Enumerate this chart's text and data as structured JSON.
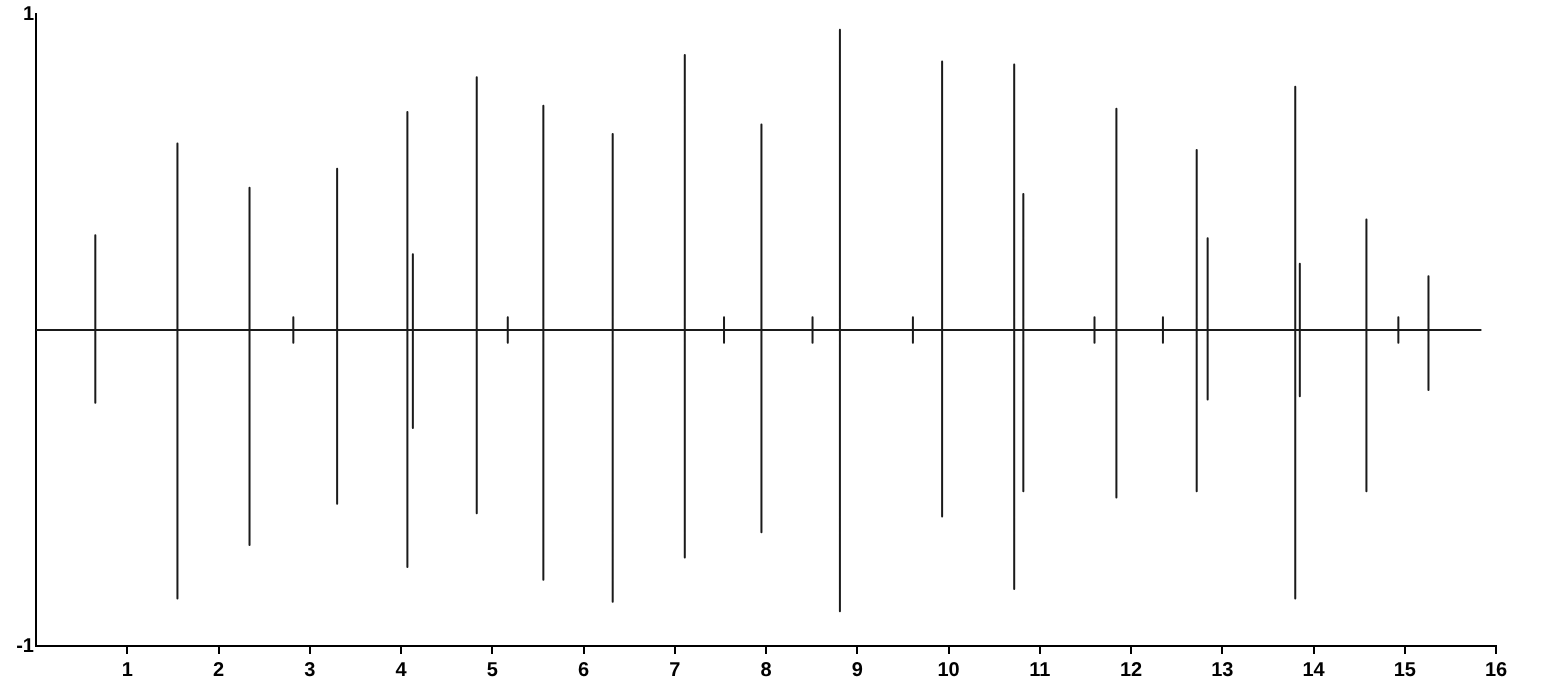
{
  "chart_data": {
    "type": "line",
    "x": [
      0,
      0.65,
      0.65,
      0.65,
      0.65,
      1.55,
      1.55,
      1.55,
      1.55,
      2.34,
      2.34,
      2.34,
      2.34,
      2.82,
      2.82,
      2.82,
      2.82,
      3.3,
      3.3,
      3.3,
      3.3,
      4.07,
      4.07,
      4.07,
      4.07,
      4.13,
      4.13,
      4.13,
      4.13,
      4.83,
      4.83,
      4.83,
      4.83,
      5.17,
      5.17,
      5.17,
      5.17,
      5.56,
      5.56,
      5.56,
      5.56,
      6.32,
      6.32,
      6.32,
      6.32,
      7.11,
      7.11,
      7.11,
      7.11,
      7.54,
      7.54,
      7.54,
      7.54,
      7.95,
      7.95,
      7.95,
      7.95,
      8.51,
      8.51,
      8.51,
      8.51,
      8.81,
      8.81,
      8.81,
      8.81,
      9.61,
      9.61,
      9.61,
      9.61,
      9.93,
      9.93,
      9.93,
      9.93,
      10.72,
      10.72,
      10.72,
      10.72,
      10.82,
      10.82,
      10.82,
      10.82,
      11.6,
      11.6,
      11.6,
      11.6,
      11.84,
      11.84,
      11.84,
      11.84,
      12.35,
      12.35,
      12.35,
      12.35,
      12.72,
      12.72,
      12.72,
      12.72,
      12.84,
      12.84,
      12.84,
      12.84,
      13.8,
      13.8,
      13.8,
      13.8,
      13.85,
      13.85,
      13.85,
      13.85,
      14.58,
      14.58,
      14.58,
      14.58,
      14.93,
      14.93,
      14.93,
      14.93,
      15.26,
      15.26,
      15.26,
      15.26,
      15.84
    ],
    "values": [
      0,
      0,
      0.3,
      -0.23,
      0,
      0,
      0.59,
      -0.85,
      0,
      0,
      0.45,
      -0.68,
      0,
      0,
      0.04,
      -0.04,
      0,
      0,
      0.51,
      -0.55,
      0,
      0,
      0.69,
      -0.75,
      0,
      0,
      0.24,
      -0.31,
      0,
      0,
      0.8,
      -0.58,
      0,
      0,
      0.04,
      -0.04,
      0,
      0,
      0.71,
      -0.79,
      0,
      0,
      0.62,
      -0.86,
      0,
      0,
      0.87,
      -0.72,
      0,
      0,
      0.04,
      -0.04,
      0,
      0,
      0.65,
      -0.64,
      0,
      0,
      0.04,
      -0.04,
      0,
      0,
      0.95,
      -0.89,
      0,
      0,
      0.04,
      -0.04,
      0,
      0,
      0.85,
      -0.59,
      0,
      0,
      0.84,
      -0.82,
      0,
      0,
      0.43,
      -0.51,
      0,
      0,
      0.04,
      -0.04,
      0,
      0,
      0.7,
      -0.53,
      0,
      0,
      0.04,
      -0.04,
      0,
      0,
      0.57,
      -0.51,
      0,
      0,
      0.29,
      -0.22,
      0,
      0,
      0.77,
      -0.85,
      0,
      0,
      0.21,
      -0.21,
      0,
      0,
      0.35,
      -0.51,
      0,
      0,
      0.04,
      -0.04,
      0,
      0,
      0.17,
      -0.19,
      0,
      0
    ],
    "color": "#1a1a1a",
    "xlim": [
      0,
      16
    ],
    "xticks": [
      1,
      2,
      3,
      4,
      5,
      6,
      7,
      8,
      9,
      10,
      11,
      12,
      13,
      14,
      15,
      16
    ],
    "ylim": [
      -1,
      1
    ],
    "yticks": [
      -1,
      1
    ],
    "grid": false,
    "legend": false,
    "marker": "none",
    "line_style": "solid"
  }
}
